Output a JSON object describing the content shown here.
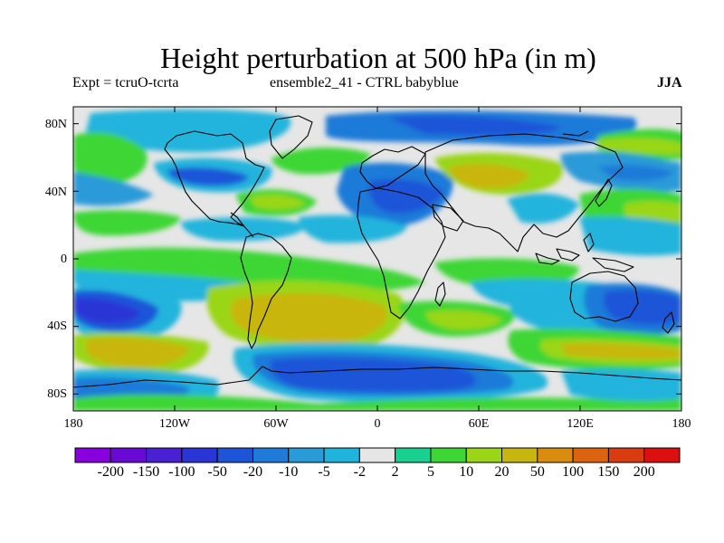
{
  "header": {
    "title": "Height perturbation at 500 hPa (in m)",
    "expt_label": "Expt = tcruO-tcrta",
    "ensemble_label": "ensemble2_41 - CTRL babyblue",
    "season_label": "JJA"
  },
  "map": {
    "projection": "cylindrical equidistant",
    "lon_range": [
      -180,
      180
    ],
    "lat_range": [
      -90,
      90
    ],
    "lat_ticks": [
      {
        "value": 80,
        "label": "80N"
      },
      {
        "value": 40,
        "label": "40N"
      },
      {
        "value": 0,
        "label": "0"
      },
      {
        "value": -40,
        "label": "40S"
      },
      {
        "value": -80,
        "label": "80S"
      }
    ],
    "lon_ticks": [
      {
        "value": -180,
        "label": "180"
      },
      {
        "value": -120,
        "label": "120W"
      },
      {
        "value": -60,
        "label": "60W"
      },
      {
        "value": 0,
        "label": "0"
      },
      {
        "value": 60,
        "label": "60E"
      },
      {
        "value": 120,
        "label": "120E"
      },
      {
        "value": 180,
        "label": "180"
      }
    ]
  },
  "colorbar": {
    "colors": [
      "#8800dd",
      "#6a08d6",
      "#4a20d4",
      "#2a35d6",
      "#1e55d8",
      "#1f7ad8",
      "#2a9ad8",
      "#20b4dc",
      "#e6e6e6",
      "#18d090",
      "#3dd635",
      "#9ad617",
      "#c8b610",
      "#da8c10",
      "#dc6410",
      "#d83c10",
      "#dd1010"
    ],
    "labels": [
      "-200",
      "-150",
      "-100",
      "-50",
      "-20",
      "-10",
      "-5",
      "-2",
      "2",
      "5",
      "10",
      "20",
      "50",
      "100",
      "150",
      "200"
    ]
  }
}
